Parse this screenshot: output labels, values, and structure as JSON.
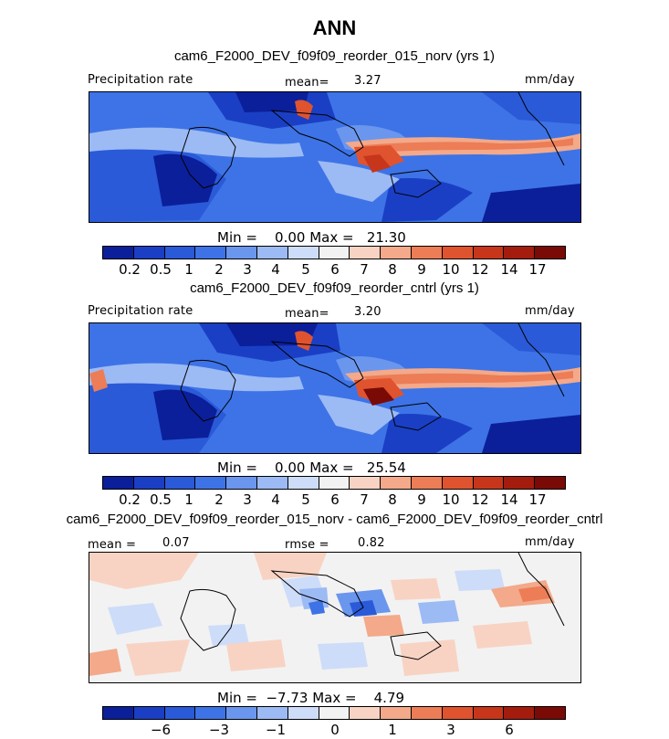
{
  "title": "ANN",
  "colormap": [
    "#0b1f9a",
    "#1a3fc4",
    "#2a5ad8",
    "#3d73e6",
    "#6b96ee",
    "#9cbaf4",
    "#cddcf8",
    "#f2f2f2",
    "#f8d3c3",
    "#f3a98a",
    "#ec7d56",
    "#e0532f",
    "#c7361a",
    "#a41c0e",
    "#7a0a06"
  ],
  "panels": [
    {
      "case_title": "cam6_F2000_DEV_f09f09_reorder_015_norv (yrs 1)",
      "left_label": "Precipitation rate",
      "center_label": "mean=",
      "center_value": "3.27",
      "units": "mm/day",
      "minmax": "Min =    0.00 Max =   21.30",
      "levels": [
        "0.2",
        "0.5",
        "1",
        "2",
        "3",
        "4",
        "5",
        "6",
        "7",
        "8",
        "9",
        "10",
        "12",
        "14",
        "17"
      ],
      "map_field": "precip_a"
    },
    {
      "case_title": "cam6_F2000_DEV_f09f09_reorder_cntrl (yrs 1)",
      "left_label": "Precipitation rate",
      "center_label": "mean=",
      "center_value": "3.20",
      "units": "mm/day",
      "minmax": "Min =    0.00 Max =   25.54",
      "levels": [
        "0.2",
        "0.5",
        "1",
        "2",
        "3",
        "4",
        "5",
        "6",
        "7",
        "8",
        "9",
        "10",
        "12",
        "14",
        "17"
      ],
      "map_field": "precip_b"
    },
    {
      "case_title": "cam6_F2000_DEV_f09f09_reorder_015_norv - cam6_F2000_DEV_f09f09_reorder_cntrl",
      "left_label": "mean =",
      "left_value": "0.07",
      "center_label": "rmse =",
      "center_value": "0.82",
      "units": "mm/day",
      "minmax": "Min =  −7.73 Max =    4.79",
      "levels": [
        "−6",
        "−3",
        "−1",
        "0",
        "1",
        "3",
        "6"
      ],
      "map_field": "difference"
    }
  ]
}
